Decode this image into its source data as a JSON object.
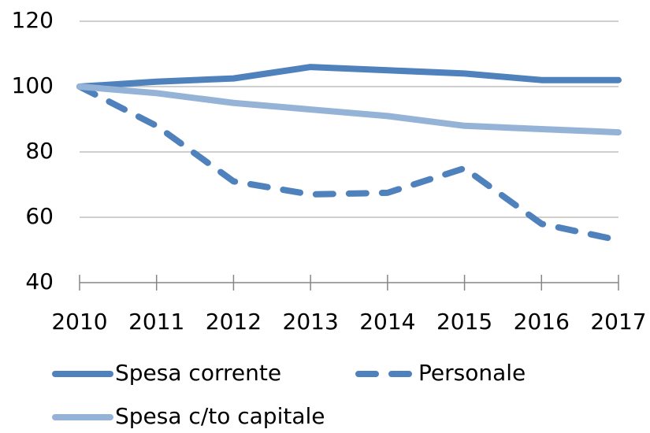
{
  "chart_data": {
    "type": "line",
    "categories": [
      "2010",
      "2011",
      "2012",
      "2013",
      "2014",
      "2015",
      "2016",
      "2017"
    ],
    "series": [
      {
        "name": "Spesa corrente",
        "color": "#4f81bd",
        "dash": false,
        "values": [
          100,
          101.5,
          102.5,
          106,
          105,
          104,
          102,
          102
        ]
      },
      {
        "name": "Personale",
        "color": "#4f81bd",
        "dash": true,
        "values": [
          100,
          88,
          71,
          67,
          67.5,
          75,
          58,
          53
        ]
      },
      {
        "name": "Spesa c/to capitale",
        "color": "#95b3d7",
        "dash": false,
        "values": [
          100,
          98,
          95,
          93,
          91,
          88,
          87,
          86
        ]
      }
    ],
    "ylim": [
      40,
      120
    ],
    "yticks": [
      40,
      60,
      80,
      100,
      120
    ],
    "grid": true,
    "legend": "bottom"
  }
}
